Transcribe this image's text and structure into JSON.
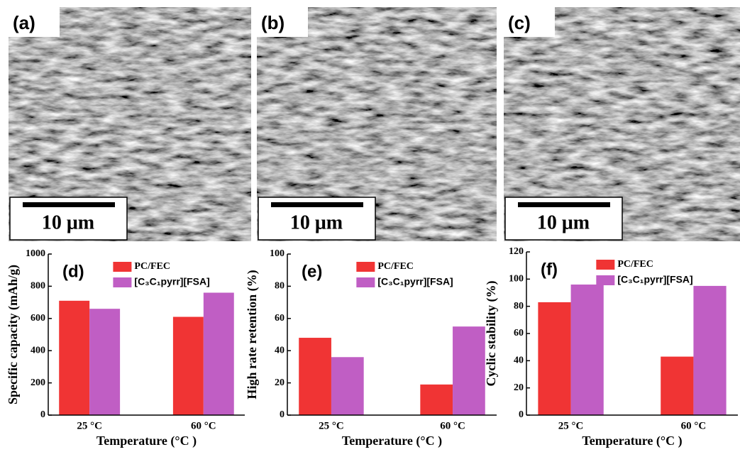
{
  "panels": [
    {
      "label": "(a)",
      "scale_bar": "10 μm"
    },
    {
      "label": "(b)",
      "scale_bar": "10 μm"
    },
    {
      "label": "(c)",
      "scale_bar": "10 μm"
    }
  ],
  "chart_data": [
    {
      "type": "bar",
      "panel_label": "(d)",
      "ylabel": "Specific capacity (mAh/g)",
      "xlabel": "Temperature (°C )",
      "categories": [
        "25 °C",
        "60 °C"
      ],
      "series": [
        {
          "name": "PC/FEC",
          "color": "#f03434",
          "values": [
            710,
            610
          ]
        },
        {
          "name": "[C₃C₁pyrr][FSA]",
          "color": "#c05ec4",
          "values": [
            660,
            760
          ]
        }
      ],
      "ylim": [
        0,
        1000
      ],
      "yticks": [
        0,
        200,
        400,
        600,
        800,
        1000
      ]
    },
    {
      "type": "bar",
      "panel_label": "(e)",
      "ylabel": "High rate retention (%)",
      "xlabel": "Temperature (°C )",
      "categories": [
        "25 °C",
        "60 °C"
      ],
      "series": [
        {
          "name": "PC/FEC",
          "color": "#f03434",
          "values": [
            48,
            19
          ]
        },
        {
          "name": "[C₃C₁pyrr][FSA]",
          "color": "#c05ec4",
          "values": [
            36,
            55
          ]
        }
      ],
      "ylim": [
        0,
        100
      ],
      "yticks": [
        0,
        20,
        40,
        60,
        80,
        100
      ]
    },
    {
      "type": "bar",
      "panel_label": "(f)",
      "ylabel": "Cyclic stability (%)",
      "xlabel": "Temperature (°C )",
      "categories": [
        "25 °C",
        "60 °C"
      ],
      "series": [
        {
          "name": "PC/FEC",
          "color": "#f03434",
          "values": [
            83,
            43
          ]
        },
        {
          "name": "[C₃C₁pyrr][FSA]",
          "color": "#c05ec4",
          "values": [
            96,
            95
          ]
        }
      ],
      "ylim": [
        0,
        120
      ],
      "yticks": [
        0,
        20,
        40,
        60,
        80,
        100,
        120
      ]
    }
  ]
}
